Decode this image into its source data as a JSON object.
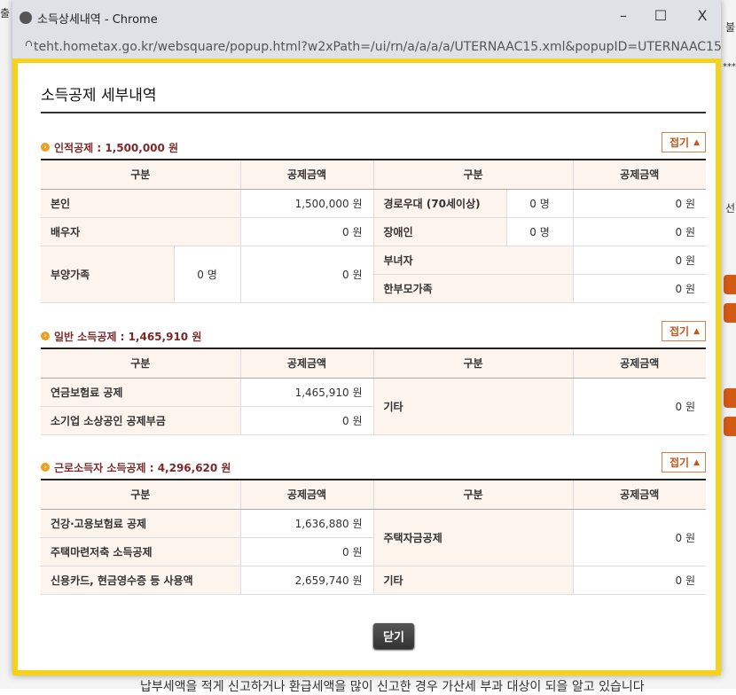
{
  "window": {
    "title": "소득상세내역 - Chrome",
    "url": "teht.hometax.go.kr/websquare/popup.html?w2xPath=/ui/rn/a/a/a/a/UTERNAAC15.xml&popupID=UTERNAAC15&w2...",
    "minimize": "–",
    "maximize": "☐",
    "close": "X"
  },
  "background": {
    "left_tab": "출",
    "right_tab": "불",
    "right_btn": "선",
    "stars": "***",
    "bottom_text": "납부세액을 적게 신고하거나 환급세액을 많이 신고한 경우 가산세 부과 대상이 되을 알고 있습니다"
  },
  "page_title": "소득공제 세부내역",
  "fold_label": "접기",
  "col": {
    "category": "구분",
    "amount": "공제금액"
  },
  "s1": {
    "title": "인적공제 : 1,500,000 원",
    "r1": {
      "a": "본인",
      "a_amt": "1,500,000 원",
      "b": "경로우대 (70세이상)",
      "b_cnt": "0 명",
      "b_amt": "0 원"
    },
    "r2": {
      "a": "배우자",
      "a_amt": "0 원",
      "b": "장애인",
      "b_cnt": "0 명",
      "b_amt": "0 원"
    },
    "r3": {
      "a": "부양가족",
      "a_cnt": "0 명",
      "a_amt": "0 원",
      "b": "부녀자",
      "b_amt": "0 원"
    },
    "r4": {
      "b": "한부모가족",
      "b_amt": "0 원"
    }
  },
  "s2": {
    "title": "일반 소득공제 : 1,465,910 원",
    "r1": {
      "a": "연금보험료 공제",
      "a_amt": "1,465,910 원",
      "b": "기타",
      "b_amt": "0 원"
    },
    "r2": {
      "a": "소기업 소상공인 공제부금",
      "a_amt": "0 원"
    }
  },
  "s3": {
    "title": "근로소득자 소득공제 : 4,296,620 원",
    "r1": {
      "a": "건강·고용보험료 공제",
      "a_amt": "1,636,880 원",
      "b": "주택자금공제",
      "b_amt": "0 원"
    },
    "r2": {
      "a": "주택마련저축 소득공제",
      "a_amt": "0 원"
    },
    "r3": {
      "a": "신용카드, 현금영수증 등 사용액",
      "a_amt": "2,659,740 원",
      "b": "기타",
      "b_amt": "0 원"
    }
  },
  "close_label": "닫기",
  "colors": {
    "frame": "#f7d21c",
    "section_title": "#7b2a2a",
    "label_bg": "#fdf4ee",
    "fold": "#c4581a"
  }
}
